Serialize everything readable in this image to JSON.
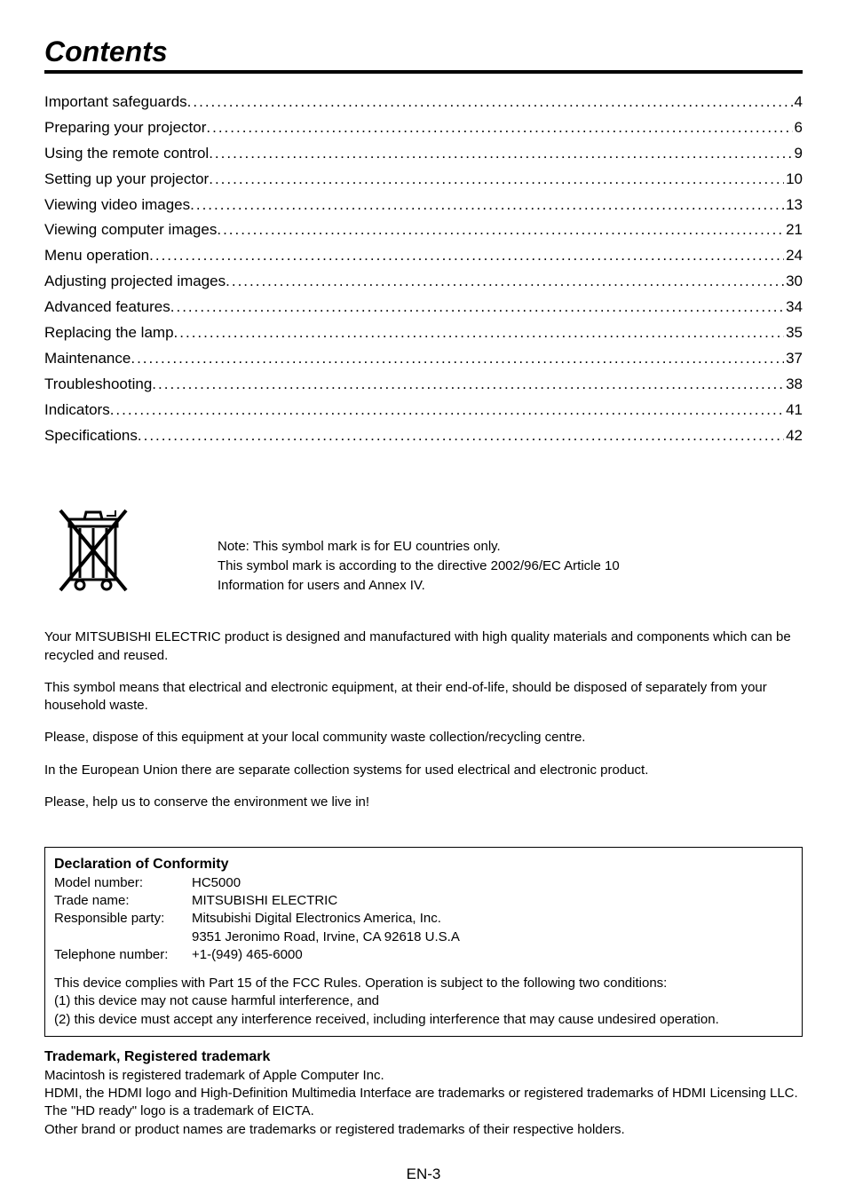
{
  "title": "Contents",
  "toc": [
    {
      "label": "Important safeguards",
      "page": "4"
    },
    {
      "label": "Preparing your projector",
      "page": "6"
    },
    {
      "label": "Using the remote control",
      "page": "9"
    },
    {
      "label": "Setting up your projector",
      "page": "10"
    },
    {
      "label": "Viewing video images",
      "page": "13"
    },
    {
      "label": "Viewing computer images",
      "page": "21"
    },
    {
      "label": "Menu operation",
      "page": "24"
    },
    {
      "label": "Adjusting projected images",
      "page": "30"
    },
    {
      "label": "Advanced features",
      "page": "34"
    },
    {
      "label": "Replacing the lamp",
      "page": "35"
    },
    {
      "label": "Maintenance",
      "page": "37"
    },
    {
      "label": "Troubleshooting",
      "page": "38"
    },
    {
      "label": "Indicators",
      "page": "41"
    },
    {
      "label": "Specifications",
      "page": "42"
    }
  ],
  "weee": {
    "line1": "Note: This symbol mark is for EU countries only.",
    "line2": "This symbol mark is according to the directive 2002/96/EC Article 10",
    "line3": "Information for users and Annex IV."
  },
  "paragraphs": {
    "p1": "Your MITSUBISHI ELECTRIC product is designed and manufactured with high quality materials and components which can be recycled and reused.",
    "p2": "This symbol means that electrical and electronic equipment, at their end-of-life, should be disposed of separately from your household waste.",
    "p3": "Please, dispose of this equipment at your local community waste collection/recycling centre.",
    "p4": "In the European Union there are separate collection systems for used electrical and electronic product.",
    "p5": "Please, help us to conserve the environment we live in!"
  },
  "declaration": {
    "title": "Declaration of Conformity",
    "rows": [
      {
        "label": "Model number:",
        "value": "HC5000"
      },
      {
        "label": "Trade name:",
        "value": "MITSUBISHI ELECTRIC"
      },
      {
        "label": "Responsible party:",
        "value": "Mitsubishi Digital Electronics America, Inc."
      },
      {
        "label": "",
        "value": "9351 Jeronimo Road, Irvine, CA 92618 U.S.A"
      },
      {
        "label": "Telephone number:",
        "value": "+1-(949) 465-6000"
      }
    ],
    "notice1": "This device complies with Part 15 of the FCC Rules. Operation is subject to the following two conditions:",
    "notice2": "(1) this device may not cause harmful interference, and",
    "notice3": "(2) this device must accept any interference received, including interference that may cause undesired operation."
  },
  "trademark": {
    "title": "Trademark, Registered trademark",
    "line1": "Macintosh is registered trademark of Apple Computer Inc.",
    "line2": "HDMI, the HDMI logo and High-Definition Multimedia Interface are trademarks or registered trademarks of HDMI Licensing LLC.",
    "line3": "The \"HD ready\" logo is a trademark of EICTA.",
    "line4": "Other brand or product names are trademarks or registered trademarks of their respective holders."
  },
  "pageNumber": "EN-3"
}
